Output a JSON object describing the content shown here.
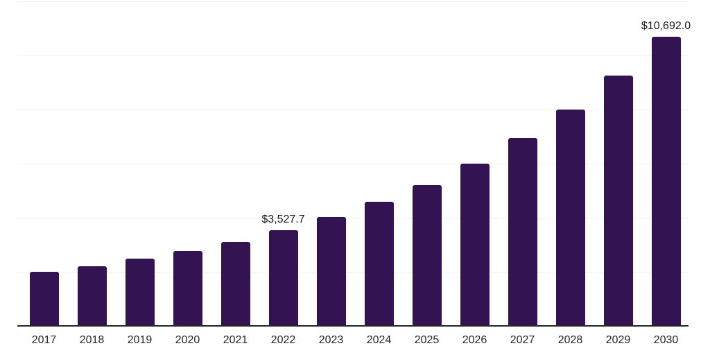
{
  "chart_data": {
    "type": "bar",
    "title": "",
    "xlabel": "",
    "ylabel": "",
    "categories": [
      "2017",
      "2018",
      "2019",
      "2020",
      "2021",
      "2022",
      "2023",
      "2024",
      "2025",
      "2026",
      "2027",
      "2028",
      "2029",
      "2030"
    ],
    "values": [
      1995,
      2210,
      2480,
      2770,
      3105,
      3527.7,
      4030,
      4580,
      5210,
      5995,
      6945,
      7990,
      9250,
      10692.0
    ],
    "value_labels": {
      "5": "$3,527.7",
      "13": "$10,692.0"
    },
    "ylim": [
      0,
      12000
    ],
    "gridlines": [
      2000,
      4000,
      6000,
      8000,
      10000,
      12000
    ],
    "grid": "horizontal",
    "legend": "none",
    "colors": {
      "bar": "#341352",
      "axis_line": "#262626",
      "gridline": "#f2f2f2",
      "tick_label": "#262626",
      "data_label": "#1a1a1a",
      "background": "#ffffff"
    }
  }
}
